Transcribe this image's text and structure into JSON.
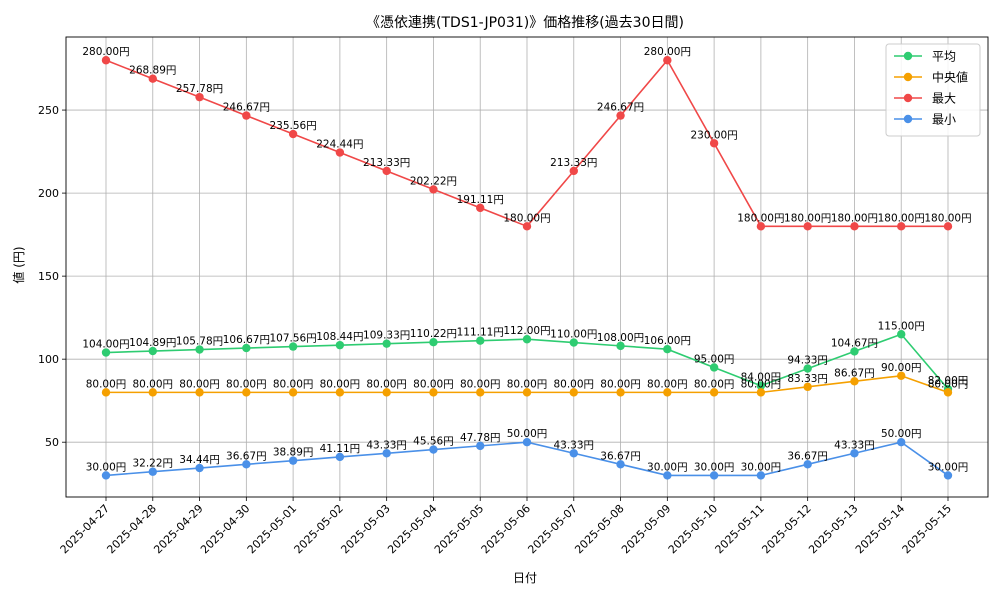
{
  "chart_data": {
    "type": "line",
    "title": "《憑依連携(TDS1-JP031)》価格推移(過去30日間)",
    "xlabel": "日付",
    "ylabel": "値 (円)",
    "ylim": [
      17,
      294
    ],
    "yticks": [
      50,
      100,
      150,
      200,
      250
    ],
    "grid": true,
    "legend_position": "top-right",
    "value_suffix": "円",
    "categories": [
      "2025-04-27",
      "2025-04-28",
      "2025-04-29",
      "2025-04-30",
      "2025-05-01",
      "2025-05-02",
      "2025-05-03",
      "2025-05-04",
      "2025-05-05",
      "2025-05-06",
      "2025-05-07",
      "2025-05-08",
      "2025-05-09",
      "2025-05-10",
      "2025-05-11",
      "2025-05-12",
      "2025-05-13",
      "2025-05-14",
      "2025-05-15"
    ],
    "series": [
      {
        "name": "平均",
        "color": "#2ecc71",
        "values": [
          104.0,
          104.89,
          105.78,
          106.67,
          107.56,
          108.44,
          109.33,
          110.22,
          111.11,
          112.0,
          110.0,
          108.0,
          106.0,
          95.0,
          84.0,
          94.33,
          104.67,
          115.0,
          82.0
        ]
      },
      {
        "name": "中央値",
        "color": "#f5a000",
        "values": [
          80.0,
          80.0,
          80.0,
          80.0,
          80.0,
          80.0,
          80.0,
          80.0,
          80.0,
          80.0,
          80.0,
          80.0,
          80.0,
          80.0,
          80.0,
          83.33,
          86.67,
          90.0,
          80.0
        ]
      },
      {
        "name": "最大",
        "color": "#f04848",
        "values": [
          280.0,
          268.89,
          257.78,
          246.67,
          235.56,
          224.44,
          213.33,
          202.22,
          191.11,
          180.0,
          213.33,
          246.67,
          280.0,
          230.0,
          180.0,
          180.0,
          180.0,
          180.0,
          180.0
        ]
      },
      {
        "name": "最小",
        "color": "#4a90e8",
        "values": [
          30.0,
          32.22,
          34.44,
          36.67,
          38.89,
          41.11,
          43.33,
          45.56,
          47.78,
          50.0,
          43.33,
          36.67,
          30.0,
          30.0,
          30.0,
          36.67,
          43.33,
          50.0,
          30.0
        ]
      }
    ]
  }
}
